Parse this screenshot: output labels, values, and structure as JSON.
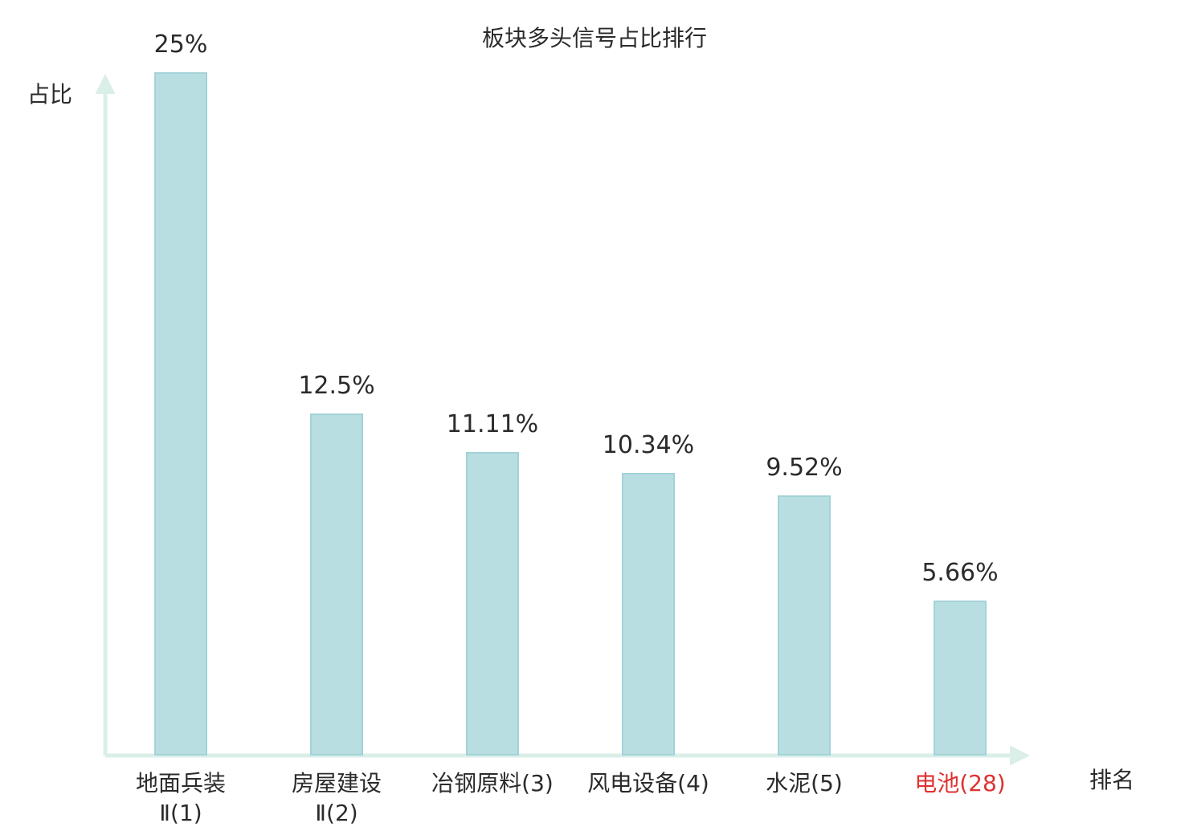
{
  "chart_data": {
    "type": "bar",
    "title": "板块多头信号占比排行",
    "xlabel": "排名",
    "ylabel": "占比",
    "ylim": [
      0,
      25
    ],
    "grid": false,
    "legend": false,
    "categories": [
      "地面兵装Ⅱ(1)",
      "房屋建设Ⅱ(2)",
      "冶钢原料(3)",
      "风电设备(4)",
      "水泥(5)",
      "电池(28)"
    ],
    "values": [
      25,
      12.5,
      11.11,
      10.34,
      9.52,
      5.66
    ],
    "value_labels": [
      "25%",
      "12.5%",
      "11.11%",
      "10.34%",
      "9.52%",
      "5.66%"
    ],
    "bars": [
      {
        "label_lines": [
          "地面兵装",
          "Ⅱ(1)"
        ],
        "value": 25,
        "value_label": "25%",
        "highlight": false
      },
      {
        "label_lines": [
          "房屋建设",
          "Ⅱ(2)"
        ],
        "value": 12.5,
        "value_label": "12.5%",
        "highlight": false
      },
      {
        "label_lines": [
          "冶钢原料(3)"
        ],
        "value": 11.11,
        "value_label": "11.11%",
        "highlight": false
      },
      {
        "label_lines": [
          "风电设备(4)"
        ],
        "value": 10.34,
        "value_label": "10.34%",
        "highlight": false
      },
      {
        "label_lines": [
          "水泥(5)"
        ],
        "value": 9.52,
        "value_label": "9.52%",
        "highlight": false
      },
      {
        "label_lines": [
          "电池(28)"
        ],
        "value": 5.66,
        "value_label": "5.66%",
        "highlight": true
      }
    ],
    "colors": {
      "bar_fill": "#b9dee2",
      "bar_border": "#a3d2d8",
      "axis": "#d9efe8",
      "text": "#2b2b2b",
      "highlight": "#e03131"
    }
  }
}
